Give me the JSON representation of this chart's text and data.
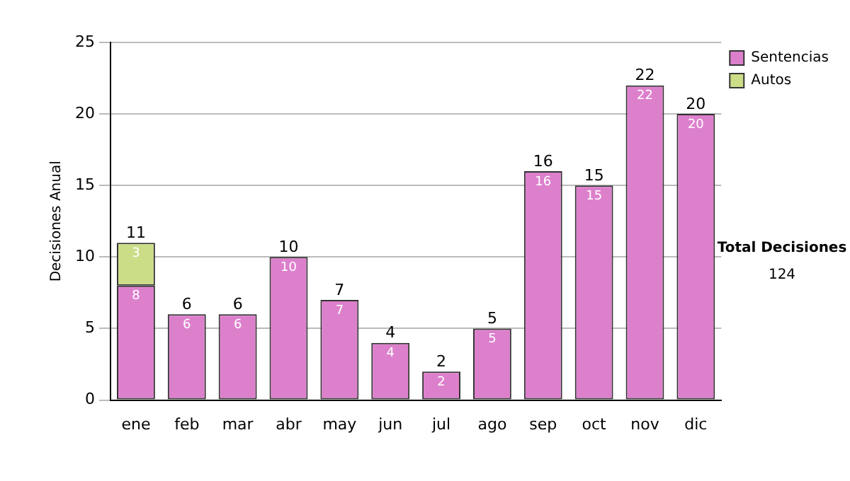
{
  "chart_data": {
    "type": "bar",
    "stacked": true,
    "ylabel": "Decisiones Anual",
    "categories": [
      "ene",
      "feb",
      "mar",
      "abr",
      "may",
      "jun",
      "jul",
      "ago",
      "sep",
      "oct",
      "nov",
      "dic"
    ],
    "series": [
      {
        "name": "Sentencias",
        "color": "#dd80cc",
        "values": [
          8,
          6,
          6,
          10,
          7,
          4,
          2,
          5,
          16,
          15,
          22,
          20
        ]
      },
      {
        "name": "Autos",
        "color": "#ccdd88",
        "values": [
          3,
          null,
          null,
          null,
          null,
          null,
          null,
          null,
          null,
          null,
          null,
          null
        ]
      }
    ],
    "totals": [
      "11",
      "6",
      "6",
      "10",
      "7",
      "4",
      "2",
      "5",
      "16",
      "15",
      "22",
      "20"
    ],
    "data_labels": true,
    "ylim": [
      0,
      25
    ],
    "yticks": [
      0,
      5,
      10,
      15,
      20,
      25
    ],
    "grid": "y",
    "legend": "right",
    "annotations": [
      "Total Decisiones",
      "124"
    ]
  }
}
